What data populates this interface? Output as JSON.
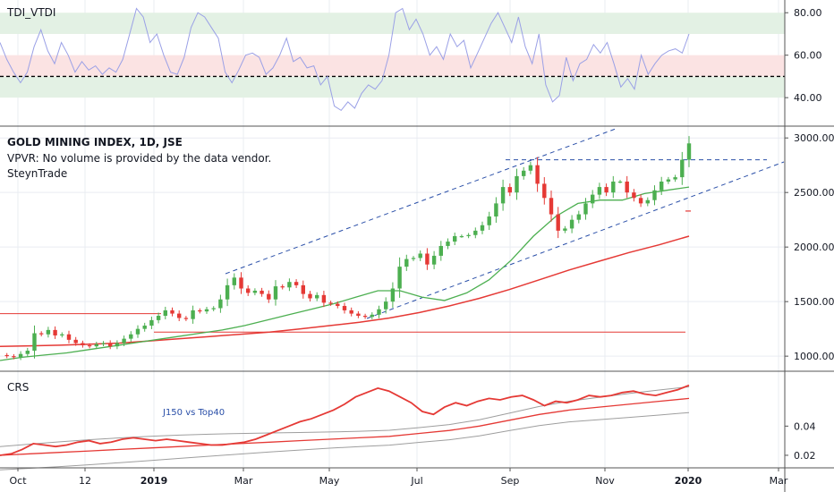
{
  "chart_data": [
    {
      "pane": "oscillator",
      "type": "line",
      "title": "TDI_VTDI",
      "ylim": [
        27,
        86
      ],
      "y_ticks": [
        "80.00",
        "60.00",
        "40.00"
      ],
      "zones": [
        {
          "from": 70,
          "to": 80,
          "color": "#e3f1e4"
        },
        {
          "from": 50,
          "to": 60,
          "color": "#fbe3e3"
        },
        {
          "from": 40,
          "to": 50,
          "color": "#e3f1e4"
        }
      ],
      "midline": 50,
      "series": [
        {
          "color": "#9aa0e6",
          "values": [
            66,
            58,
            52,
            47,
            52,
            64,
            72,
            62,
            56,
            66,
            60,
            52,
            57,
            53,
            55,
            51,
            54,
            52,
            58,
            70,
            82,
            78,
            66,
            70,
            60,
            52,
            51,
            59,
            73,
            80,
            78,
            73,
            68,
            52,
            47,
            53,
            60,
            61,
            59,
            51,
            54,
            60,
            68,
            57,
            59,
            54,
            55,
            46,
            50,
            36,
            34,
            38,
            35,
            42,
            46,
            44,
            48,
            60,
            80,
            82,
            72,
            77,
            70,
            60,
            64,
            58,
            70,
            64,
            67,
            54,
            61,
            68,
            75,
            80,
            73,
            66,
            78,
            64,
            56,
            70,
            46,
            38,
            41,
            59,
            48,
            56,
            58,
            65,
            61,
            66,
            56,
            45,
            49,
            44,
            60,
            51,
            56,
            60,
            62,
            63,
            61,
            70
          ]
        }
      ]
    },
    {
      "pane": "price",
      "type": "line",
      "title": "GOLD MINING INDEX, 1D, JSE",
      "notes": [
        "VPVR: No volume is provided by the data vendor.",
        "SteynTrade"
      ],
      "ylim": [
        870,
        3100
      ],
      "y_ticks": [
        "3000.00",
        "2500.00",
        "2000.00",
        "1500.00",
        "1000.00"
      ],
      "series": [
        {
          "name": "",
          "color": "#c63b3b",
          "values": [
            1010,
            1000,
            990,
            1020,
            1050,
            1210,
            1200,
            1240,
            1190,
            1200,
            1150,
            1120,
            1100,
            1090,
            1110,
            1120,
            1090,
            1120,
            1160,
            1200,
            1250,
            1280,
            1330,
            1370,
            1420,
            1390,
            1350,
            1340,
            1420,
            1410,
            1430,
            1440,
            1520,
            1650,
            1720,
            1620,
            1580,
            1600,
            1570,
            1520,
            1640,
            1630,
            1680,
            1650,
            1570,
            1530,
            1560,
            1490,
            1480,
            1460,
            1420,
            1390,
            1370,
            1360,
            1380,
            1430,
            1500,
            1620,
            1820,
            1890,
            1900,
            1940,
            1840,
            1920,
            2010,
            2050,
            2100,
            2100,
            2110,
            2150,
            2200,
            2280,
            2400,
            2550,
            2500,
            2650,
            2700,
            2750,
            2580,
            2450,
            2300,
            2150,
            2170,
            2250,
            2300,
            2400,
            2480,
            2550,
            2500,
            2600,
            2600,
            2500,
            2450,
            2400,
            2430,
            2520,
            2600,
            2620,
            2640,
            2800,
            2950
          ]
        },
        {
          "name": "",
          "color": "#4caf50",
          "values": [
            960,
            990,
            1010,
            1030,
            1060,
            1090,
            1120,
            1150,
            1180,
            1210,
            1240,
            1280,
            1330,
            1380,
            1430,
            1480,
            1540,
            1600,
            1600,
            1540,
            1510,
            1580,
            1700,
            1880,
            2100,
            2280,
            2400,
            2430,
            2430,
            2490,
            2520,
            2550
          ]
        },
        {
          "name": "",
          "color": "#e53935",
          "values": [
            1090,
            1095,
            1100,
            1110,
            1120,
            1140,
            1160,
            1180,
            1200,
            1220,
            1250,
            1280,
            1310,
            1350,
            1400,
            1460,
            1530,
            1610,
            1700,
            1790,
            1870,
            1950,
            2020,
            2100
          ]
        }
      ],
      "levels": [
        {
          "value": 1390,
          "color": "#e53935"
        },
        {
          "value": 1220,
          "color": "#e53935"
        },
        {
          "value": 2800,
          "color": "#2a4fa8"
        }
      ]
    },
    {
      "pane": "crs",
      "type": "line",
      "title": "CRS",
      "annotation": "J150 vs Top40",
      "ylim": [
        0.012,
        0.077
      ],
      "y_ticks": [
        "0.04",
        "0.02"
      ],
      "series": [
        {
          "name": "",
          "color": "#e53935",
          "values": [
            0.02,
            0.021,
            0.024,
            0.028,
            0.027,
            0.026,
            0.027,
            0.029,
            0.03,
            0.028,
            0.029,
            0.031,
            0.032,
            0.031,
            0.03,
            0.031,
            0.03,
            0.029,
            0.028,
            0.027,
            0.027,
            0.028,
            0.029,
            0.031,
            0.034,
            0.037,
            0.04,
            0.043,
            0.045,
            0.048,
            0.051,
            0.055,
            0.06,
            0.063,
            0.066,
            0.064,
            0.06,
            0.056,
            0.05,
            0.048,
            0.053,
            0.056,
            0.054,
            0.057,
            0.059,
            0.058,
            0.06,
            0.061,
            0.058,
            0.054,
            0.057,
            0.056,
            0.058,
            0.061,
            0.06,
            0.061,
            0.063,
            0.064,
            0.062,
            0.061,
            0.063,
            0.065,
            0.068
          ]
        },
        {
          "name": "",
          "color": "#e53935",
          "values": [
            0.02,
            0.021,
            0.022,
            0.023,
            0.024,
            0.025,
            0.026,
            0.027,
            0.028,
            0.029,
            0.03,
            0.031,
            0.032,
            0.033,
            0.035,
            0.037,
            0.04,
            0.044,
            0.048,
            0.051,
            0.053,
            0.055,
            0.057,
            0.059
          ]
        }
      ]
    }
  ],
  "x_axis": {
    "labels": [
      {
        "text": "Oct",
        "bold": false
      },
      {
        "text": "12",
        "bold": false
      },
      {
        "text": "2019",
        "bold": true
      },
      {
        "text": "Mar",
        "bold": false
      },
      {
        "text": "May",
        "bold": false
      },
      {
        "text": "Jul",
        "bold": false
      },
      {
        "text": "Sep",
        "bold": false
      },
      {
        "text": "Nov",
        "bold": false
      },
      {
        "text": "2020",
        "bold": true
      },
      {
        "text": "Mar",
        "bold": false
      }
    ]
  },
  "colors": {
    "grid": "#e9ecf2",
    "divider": "#555555",
    "up_candle": "#4caf50",
    "down_candle": "#e53935",
    "channel": "#2a4fa8"
  }
}
